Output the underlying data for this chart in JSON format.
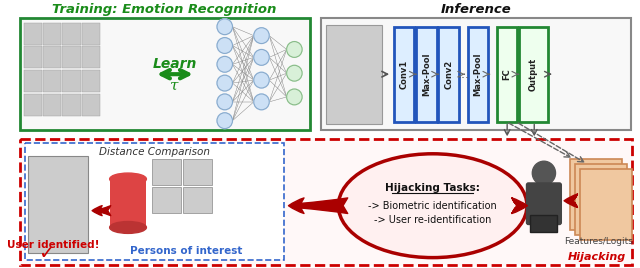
{
  "title_training": "Training: Emotion Recognition",
  "title_inference": "Inference",
  "title_hijacking": "Hijacking",
  "label_learn": "Learn",
  "label_tau": "τ",
  "label_conv1": "Conv1",
  "label_maxpool1": "Max-Pool",
  "label_conv2": "Conv2",
  "label_maxpool2": "Max-Pool",
  "label_fc": "FC",
  "label_output": "Output",
  "label_distance": "Distance Comparison",
  "label_persons": "Persons of interest",
  "label_user_id": "User identified!",
  "label_features": "Features/Logits",
  "hijack_title": "Hijacking Tasks:",
  "hijack_line1": "-> Biometric identification",
  "hijack_line2": "-> User re-identification",
  "bg_color": "#ffffff",
  "title_training_color": "#1a8c1a",
  "title_inference_color": "#111111",
  "title_hijacking_color": "#cc0000",
  "learn_color": "#1a8c1a",
  "arrow_red": "#aa0000",
  "conv_color_edge": "#2255bb",
  "conv_color_face": "#ddeeff",
  "fc_color_edge": "#228833",
  "fc_color_face": "#eeffee",
  "db_color": "#dd4444",
  "dashed_box_color": "#3366cc",
  "hijack_ellipse_color": "#aa0000",
  "training_box_edge": "#228833",
  "inference_box_edge": "#888888",
  "hijacking_box_edge": "#cc0000"
}
